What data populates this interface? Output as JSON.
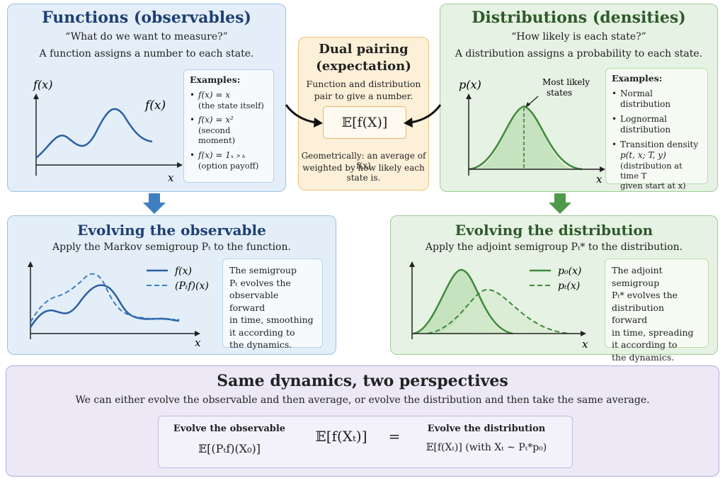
{
  "functions": {
    "title": "Functions (observables)",
    "question": "“What do we want to measure?”",
    "description": "A function assigns a number to each state.",
    "axis_y": "f(x)",
    "axis_x": "x",
    "curve_label": "f(x)",
    "examples_header": "Examples:",
    "examples": [
      {
        "formula": "f(x) = x",
        "note": "(the state itself)"
      },
      {
        "formula": "f(x) = x²",
        "note": "(second moment)"
      },
      {
        "formula": "f(x) = 1ₓ﹥ₖ",
        "note": "(option payoff)"
      }
    ]
  },
  "pairing": {
    "title_line1": "Dual pairing",
    "title_line2": "(expectation)",
    "desc_line1": "Function and distribution",
    "desc_line2": "pair to give a number.",
    "formula": "𝔼[f(X)]",
    "geo_line1": "Geometrically: an average of f(x)",
    "geo_line2": "weighted by how likely each state is."
  },
  "distributions": {
    "title": "Distributions (densities)",
    "question": "“How likely is each state?”",
    "description": "A distribution assigns a probability to each state.",
    "axis_y": "p(x)",
    "axis_x": "x",
    "annotation_line1": "Most likely",
    "annotation_line2": "states",
    "examples_header": "Examples:",
    "examples": [
      {
        "text": "Normal distribution"
      },
      {
        "text": "Lognormal distribution"
      },
      {
        "text": "Transition density",
        "formula": "p(t, x; T, y)",
        "note1": "(distribution at time T",
        "note2": "given start at x)"
      }
    ]
  },
  "evolve_observable": {
    "title": "Evolving the observable",
    "description": "Apply the Markov semigroup Pₜ to the function.",
    "legend": [
      "f(x)",
      "(Pₜf)(x)"
    ],
    "axis_x": "x",
    "note": [
      "The semigroup",
      "Pₜ evolves the",
      "observable forward",
      "in time, smoothing",
      "it according to",
      "the dynamics."
    ]
  },
  "evolve_distribution": {
    "title": "Evolving the distribution",
    "description": "Apply the adjoint semigroup Pₜ* to the distribution.",
    "legend": [
      "p₀(x)",
      "pₜ(x)"
    ],
    "axis_x": "x",
    "note": [
      "The adjoint semigroup",
      "Pₜ* evolves the",
      "distribution forward",
      "in time, spreading",
      "it according to",
      "the dynamics."
    ]
  },
  "summary": {
    "title": "Same dynamics, two perspectives",
    "description": "We can either evolve the observable and then average, or evolve the distribution and then take the same average.",
    "left_label": "Evolve the observable",
    "left_formula": "𝔼[(Pₜf)(X₀)]",
    "center_formula": "𝔼[f(Xₜ)]",
    "equals": "=",
    "right_label": "Evolve the distribution",
    "right_formula": "𝔼[f(Xₜ)]  (with Xₜ ∼ Pₜ*p₀)"
  },
  "colors": {
    "blue_accent": "#2b5fa3",
    "green_accent": "#3f8a3a",
    "blue_arrow": "#3e7fc2",
    "green_arrow": "#4e9a4a"
  }
}
